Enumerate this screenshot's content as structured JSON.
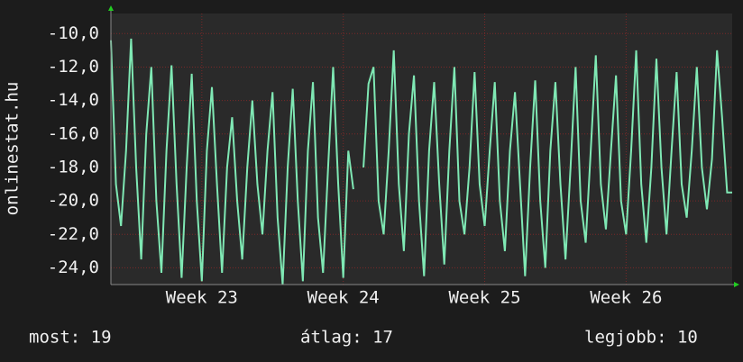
{
  "chart_data": {
    "type": "line",
    "y_label": "onlinestat.hu",
    "categories": [
      null,
      null,
      null,
      null,
      null,
      null,
      null,
      null,
      null,
      null,
      null,
      null,
      null,
      null,
      null,
      null,
      null,
      null,
      "Week 23",
      null,
      null,
      null,
      null,
      null,
      null,
      null,
      null,
      null,
      null,
      null,
      null,
      null,
      null,
      null,
      null,
      null,
      null,
      null,
      null,
      null,
      null,
      null,
      null,
      null,
      null,
      null,
      "Week 24",
      null,
      null,
      null,
      null,
      null,
      null,
      null,
      null,
      null,
      null,
      null,
      null,
      null,
      null,
      null,
      null,
      null,
      null,
      null,
      null,
      null,
      null,
      null,
      null,
      null,
      null,
      null,
      "Week 25",
      null,
      null,
      null,
      null,
      null,
      null,
      null,
      null,
      null,
      null,
      null,
      null,
      null,
      null,
      null,
      null,
      null,
      null,
      null,
      null,
      null,
      null,
      null,
      null,
      null,
      null,
      null,
      "Week 26",
      null,
      null,
      null,
      null,
      null,
      null,
      null,
      null,
      null,
      null,
      null,
      null,
      null,
      null,
      null,
      null,
      null,
      null,
      null,
      null,
      null
    ],
    "series": [
      {
        "color": "#7fe8b4",
        "values": [
          -10.4,
          -19,
          -21.5,
          -17,
          -10.3,
          -18,
          -23.5,
          -16,
          -12,
          -20,
          -24.3,
          -17,
          -11.9,
          -19,
          -24.6,
          -18,
          -12.4,
          -20,
          -24.8,
          -17,
          -13.2,
          -19,
          -24.3,
          -18,
          -15,
          -20,
          -23.5,
          -18,
          -14,
          -19,
          -22,
          -17,
          -13.5,
          -21,
          -25,
          -18,
          -13.3,
          -20,
          -24.8,
          -17,
          -12.9,
          -21,
          -24.3,
          -18,
          -12,
          -19,
          -24.6,
          -17,
          -19.3,
          null,
          -18,
          -13,
          -12,
          -20,
          -22,
          -17,
          -11,
          -19,
          -23,
          -16,
          -12.5,
          -20,
          -24.5,
          -17,
          -12.9,
          -19,
          -23.8,
          -17,
          -12,
          -20,
          -22,
          -18,
          -12.3,
          -19,
          -21.5,
          -17,
          -12.9,
          -20,
          -23,
          -17,
          -13.5,
          -19,
          -24.5,
          -18,
          -12.8,
          -20,
          -24,
          -17,
          -12.9,
          -19,
          -23.5,
          -18,
          -12,
          -20,
          -22.5,
          -17,
          -11.3,
          -19,
          -21.7,
          -17,
          -12.5,
          -20,
          -22,
          -17,
          -11,
          -19,
          -22.5,
          -18,
          -11.5,
          -18,
          -22,
          -17,
          -12.3,
          -19,
          -21,
          -17,
          -12,
          -18,
          -20.5,
          -17.5,
          -11,
          -15,
          -19.5,
          -19.5
        ]
      }
    ],
    "ylim": [
      -25,
      -8.8
    ],
    "yticks": [
      {
        "value": -24,
        "label": "-24,0"
      },
      {
        "value": -22,
        "label": "-22,0"
      },
      {
        "value": -20,
        "label": "-20,0"
      },
      {
        "value": -18,
        "label": "-18,0"
      },
      {
        "value": -16,
        "label": "-16,0"
      },
      {
        "value": -14,
        "label": "-14,0"
      },
      {
        "value": -12,
        "label": "-12,0"
      },
      {
        "value": -10,
        "label": "-10,0"
      }
    ],
    "grid": true,
    "footer": {
      "current": "most: 19",
      "average": "átlag: 17",
      "best": "legjobb: 10"
    }
  }
}
